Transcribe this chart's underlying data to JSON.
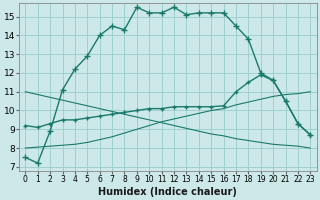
{
  "xlabel": "Humidex (Indice chaleur)",
  "background_color": "#cce8e8",
  "grid_color": "#99cccc",
  "line_color": "#1a7a6a",
  "xlim": [
    -0.5,
    23.5
  ],
  "ylim": [
    6.8,
    15.7
  ],
  "yticks": [
    7,
    8,
    9,
    10,
    11,
    12,
    13,
    14,
    15
  ],
  "xtick_labels": [
    "0",
    "1",
    "2",
    "3",
    "4",
    "5",
    "6",
    "7",
    "8",
    "9",
    "10",
    "11",
    "12",
    "13",
    "14",
    "15",
    "16",
    "17",
    "18",
    "19",
    "20",
    "21",
    "22",
    "23"
  ],
  "series1_x": [
    0,
    1,
    2,
    3,
    4,
    5,
    6,
    7,
    8,
    9,
    10,
    11,
    12,
    13,
    14,
    15,
    16,
    17,
    18,
    19,
    20,
    21,
    22,
    23
  ],
  "series1_y": [
    7.5,
    7.2,
    8.9,
    11.1,
    12.2,
    12.9,
    14.0,
    14.5,
    14.3,
    15.5,
    15.2,
    15.2,
    15.5,
    15.1,
    15.2,
    15.2,
    15.2,
    14.5,
    13.8,
    12.0,
    11.6,
    10.5,
    9.3,
    8.7
  ],
  "series2_x": [
    0,
    1,
    2,
    3,
    4,
    5,
    6,
    7,
    8,
    9,
    10,
    11,
    12,
    13,
    14,
    15,
    16,
    17,
    18,
    19,
    20,
    21,
    22,
    23
  ],
  "series2_y": [
    9.2,
    9.1,
    9.3,
    9.5,
    9.5,
    9.6,
    9.7,
    9.8,
    9.9,
    10.0,
    10.1,
    10.1,
    10.2,
    10.2,
    10.2,
    10.2,
    10.25,
    11.0,
    11.5,
    11.9,
    11.6,
    10.5,
    9.3,
    8.7
  ],
  "series3_x": [
    0,
    1,
    2,
    3,
    4,
    5,
    6,
    7,
    8,
    9,
    10,
    11,
    12,
    13,
    14,
    15,
    16,
    17,
    18,
    19,
    20,
    21,
    22,
    23
  ],
  "series3_y": [
    8.0,
    8.05,
    8.1,
    8.15,
    8.2,
    8.3,
    8.45,
    8.6,
    8.8,
    9.0,
    9.2,
    9.4,
    9.55,
    9.7,
    9.85,
    10.0,
    10.1,
    10.3,
    10.45,
    10.6,
    10.75,
    10.85,
    10.9,
    11.0
  ],
  "series4_x": [
    0,
    1,
    2,
    3,
    4,
    5,
    6,
    7,
    8,
    9,
    10,
    11,
    12,
    13,
    14,
    15,
    16,
    17,
    18,
    19,
    20,
    21,
    22,
    23
  ],
  "series4_y": [
    11.0,
    10.85,
    10.7,
    10.55,
    10.4,
    10.25,
    10.1,
    9.95,
    9.8,
    9.65,
    9.5,
    9.35,
    9.2,
    9.05,
    8.9,
    8.75,
    8.65,
    8.5,
    8.4,
    8.3,
    8.2,
    8.15,
    8.1,
    8.0
  ]
}
